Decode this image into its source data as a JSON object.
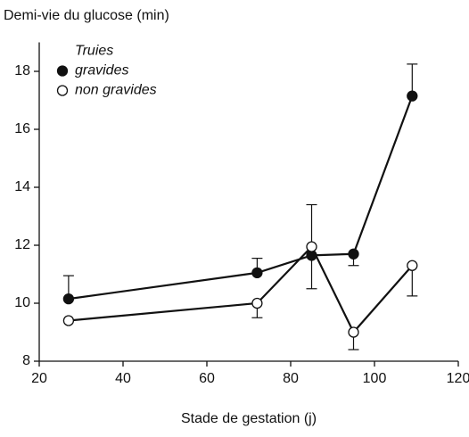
{
  "chart_data": {
    "type": "line",
    "y_label": "Demi-vie du glucose (min)",
    "x_label": "Stade de gestation (j)",
    "legend_title": "Truies",
    "legend": "upper left",
    "xlim": [
      20,
      120
    ],
    "xticks": [
      20,
      40,
      60,
      80,
      100,
      120
    ],
    "ylim": [
      8,
      19
    ],
    "yticks": [
      8,
      10,
      12,
      14,
      16,
      18
    ],
    "x": [
      27,
      72,
      85,
      95,
      109
    ],
    "series": [
      {
        "name": "gravides",
        "color": "#111111",
        "marker": "filled",
        "values": [
          10.15,
          11.05,
          11.65,
          11.7,
          17.15
        ],
        "error_high": [
          0.8,
          0.5,
          null,
          null,
          1.1
        ],
        "error_low": [
          null,
          null,
          null,
          0.4,
          null
        ]
      },
      {
        "name": "non gravides",
        "color": "#111111",
        "marker": "open",
        "values": [
          9.4,
          10.0,
          11.95,
          9.0,
          11.3
        ],
        "error_high": [
          null,
          null,
          1.45,
          null,
          null
        ],
        "error_low": [
          null,
          0.5,
          1.45,
          0.6,
          1.05
        ]
      }
    ]
  }
}
